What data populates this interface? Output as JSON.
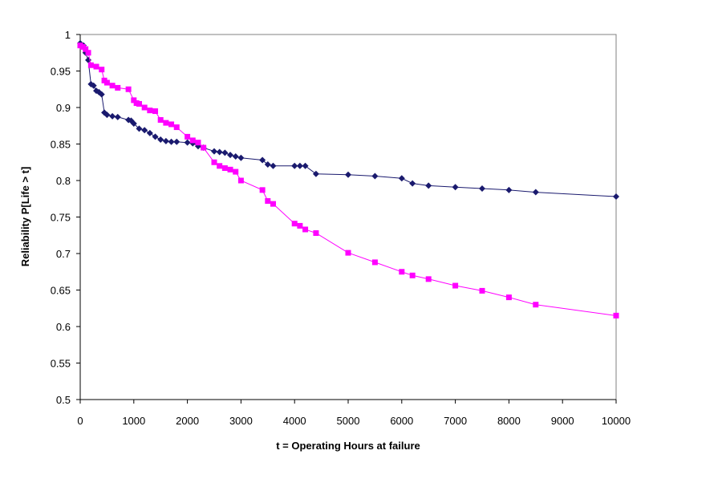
{
  "chart_data": {
    "type": "line",
    "title": "",
    "xlabel": "t = Operating Hours at failure",
    "ylabel": "Reliability P[Life > t]",
    "xlim": [
      0,
      10000
    ],
    "ylim": [
      0.5,
      1
    ],
    "x_ticks": [
      "0",
      "1000",
      "2000",
      "3000",
      "4000",
      "5000",
      "6000",
      "7000",
      "8000",
      "9000",
      "10000"
    ],
    "y_ticks": [
      "0.5",
      "0.55",
      "0.6",
      "0.65",
      "0.7",
      "0.75",
      "0.8",
      "0.85",
      "0.9",
      "0.95",
      "1"
    ],
    "grid": false,
    "legend": "none",
    "series": [
      {
        "color": "#1a1a6e",
        "marker": "diamond",
        "x": [
          0,
          60,
          100,
          150,
          200,
          250,
          300,
          350,
          400,
          450,
          500,
          600,
          700,
          900,
          950,
          1000,
          1100,
          1200,
          1300,
          1400,
          1500,
          1600,
          1700,
          1800,
          2000,
          2100,
          2200,
          2300,
          2500,
          2600,
          2700,
          2800,
          2900,
          3000,
          3400,
          3500,
          3600,
          4000,
          4100,
          4200,
          4400,
          5000,
          5500,
          6000,
          6200,
          6500,
          7000,
          7500,
          8000,
          8500,
          10000
        ],
        "y": [
          0.988,
          0.985,
          0.975,
          0.965,
          0.932,
          0.93,
          0.923,
          0.921,
          0.918,
          0.893,
          0.89,
          0.888,
          0.887,
          0.883,
          0.882,
          0.878,
          0.871,
          0.869,
          0.865,
          0.86,
          0.856,
          0.854,
          0.853,
          0.853,
          0.852,
          0.851,
          0.847,
          0.845,
          0.84,
          0.839,
          0.838,
          0.835,
          0.833,
          0.831,
          0.828,
          0.822,
          0.82,
          0.82,
          0.82,
          0.82,
          0.809,
          0.808,
          0.806,
          0.803,
          0.796,
          0.793,
          0.791,
          0.789,
          0.787,
          0.784,
          0.778
        ]
      },
      {
        "color": "#ff00ff",
        "marker": "square",
        "x": [
          0,
          50,
          100,
          150,
          200,
          300,
          400,
          450,
          500,
          600,
          700,
          900,
          1000,
          1050,
          1100,
          1200,
          1300,
          1400,
          1500,
          1600,
          1700,
          1800,
          2000,
          2100,
          2200,
          2300,
          2500,
          2600,
          2700,
          2800,
          2900,
          3000,
          3400,
          3500,
          3600,
          4000,
          4100,
          4200,
          4400,
          5000,
          5500,
          6000,
          6200,
          6500,
          7000,
          7500,
          8000,
          8500,
          10000
        ],
        "y": [
          0.985,
          0.983,
          0.98,
          0.975,
          0.958,
          0.956,
          0.952,
          0.937,
          0.934,
          0.93,
          0.927,
          0.925,
          0.91,
          0.906,
          0.905,
          0.9,
          0.896,
          0.895,
          0.883,
          0.879,
          0.877,
          0.873,
          0.86,
          0.855,
          0.852,
          0.845,
          0.825,
          0.82,
          0.817,
          0.815,
          0.812,
          0.8,
          0.787,
          0.772,
          0.768,
          0.741,
          0.738,
          0.733,
          0.728,
          0.701,
          0.688,
          0.675,
          0.67,
          0.665,
          0.656,
          0.649,
          0.64,
          0.63,
          0.615
        ]
      }
    ]
  }
}
